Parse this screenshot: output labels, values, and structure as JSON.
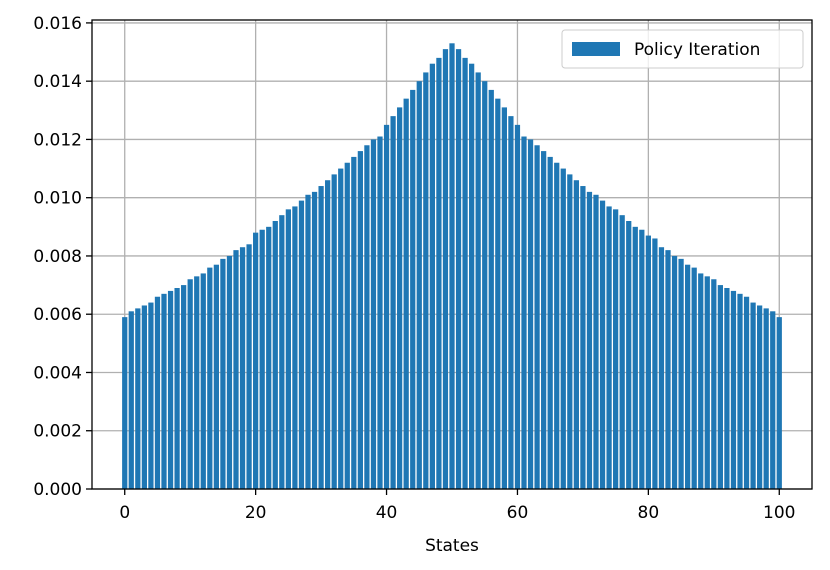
{
  "chart_data": {
    "type": "bar",
    "title": "",
    "xlabel": "States",
    "ylabel": "",
    "xlim": [
      -5,
      105
    ],
    "ylim": [
      0,
      0.0161
    ],
    "xticks": [
      0,
      20,
      40,
      60,
      80,
      100
    ],
    "xtick_labels": [
      "0",
      "20",
      "40",
      "60",
      "80",
      "100"
    ],
    "yticks": [
      0,
      0.002,
      0.004,
      0.006,
      0.008,
      0.01,
      0.012,
      0.014,
      0.016
    ],
    "ytick_labels": [
      "0.000",
      "0.002",
      "0.004",
      "0.006",
      "0.008",
      "0.010",
      "0.012",
      "0.014",
      "0.016"
    ],
    "grid": true,
    "legend_position": "top-right",
    "bar_color": "#1f77b4",
    "series": [
      {
        "name": "Policy Iteration",
        "x": [
          0,
          1,
          2,
          3,
          4,
          5,
          6,
          7,
          8,
          9,
          10,
          11,
          12,
          13,
          14,
          15,
          16,
          17,
          18,
          19,
          20,
          21,
          22,
          23,
          24,
          25,
          26,
          27,
          28,
          29,
          30,
          31,
          32,
          33,
          34,
          35,
          36,
          37,
          38,
          39,
          40,
          41,
          42,
          43,
          44,
          45,
          46,
          47,
          48,
          49,
          50,
          51,
          52,
          53,
          54,
          55,
          56,
          57,
          58,
          59,
          60,
          61,
          62,
          63,
          64,
          65,
          66,
          67,
          68,
          69,
          70,
          71,
          72,
          73,
          74,
          75,
          76,
          77,
          78,
          79,
          80,
          81,
          82,
          83,
          84,
          85,
          86,
          87,
          88,
          89,
          90,
          91,
          92,
          93,
          94,
          95,
          96,
          97,
          98,
          99,
          100
        ],
        "values": [
          0.0059,
          0.0061,
          0.0062,
          0.0063,
          0.0064,
          0.0066,
          0.0067,
          0.0068,
          0.0069,
          0.007,
          0.0072,
          0.0073,
          0.0074,
          0.0076,
          0.0077,
          0.0079,
          0.008,
          0.0082,
          0.0083,
          0.0084,
          0.0088,
          0.0089,
          0.009,
          0.0092,
          0.0094,
          0.0096,
          0.0097,
          0.0099,
          0.0101,
          0.0102,
          0.0104,
          0.0106,
          0.0108,
          0.011,
          0.0112,
          0.0114,
          0.0116,
          0.0118,
          0.012,
          0.0121,
          0.0125,
          0.0128,
          0.0131,
          0.0134,
          0.0137,
          0.014,
          0.0143,
          0.0146,
          0.0148,
          0.0151,
          0.0153,
          0.0151,
          0.0148,
          0.0146,
          0.0143,
          0.014,
          0.0137,
          0.0134,
          0.0131,
          0.0128,
          0.0125,
          0.0121,
          0.012,
          0.0118,
          0.0116,
          0.0114,
          0.0112,
          0.011,
          0.0108,
          0.0106,
          0.0104,
          0.0102,
          0.0101,
          0.0099,
          0.0097,
          0.0096,
          0.0094,
          0.0092,
          0.009,
          0.0089,
          0.0087,
          0.0086,
          0.0083,
          0.0082,
          0.008,
          0.0079,
          0.0077,
          0.0076,
          0.0074,
          0.0073,
          0.0072,
          0.007,
          0.0069,
          0.0068,
          0.0067,
          0.0066,
          0.0064,
          0.0063,
          0.0062,
          0.0061,
          0.0059
        ]
      }
    ]
  }
}
